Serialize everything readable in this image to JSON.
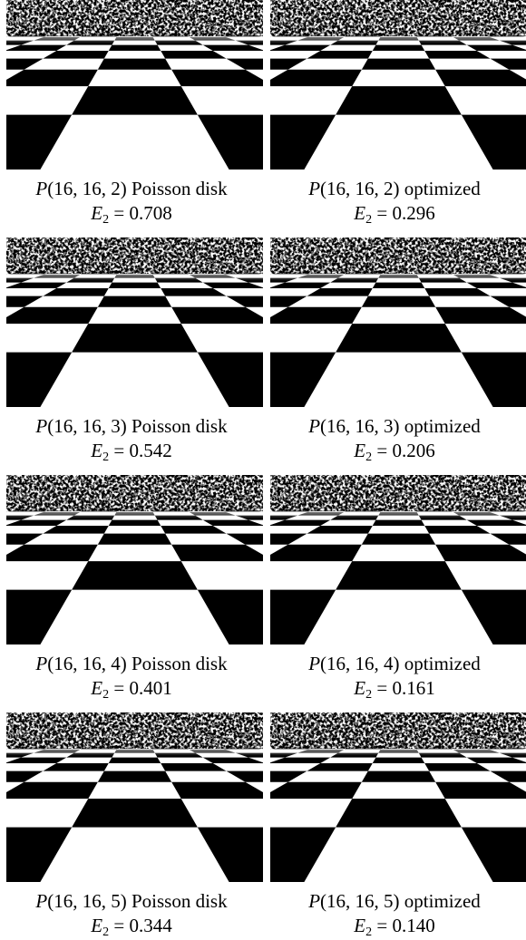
{
  "panels": [
    {
      "symbol": "P",
      "params": "(16, 16, 2)",
      "method": "Poisson disk",
      "error_symbol": "E",
      "error_subscript": "2",
      "relation": "=",
      "error": "0.708"
    },
    {
      "symbol": "P",
      "params": "(16, 16, 2)",
      "method": "optimized",
      "error_symbol": "E",
      "error_subscript": "2",
      "relation": "=",
      "error": "0.296"
    },
    {
      "symbol": "P",
      "params": "(16, 16, 3)",
      "method": "Poisson disk",
      "error_symbol": "E",
      "error_subscript": "2",
      "relation": "=",
      "error": "0.542"
    },
    {
      "symbol": "P",
      "params": "(16, 16, 3)",
      "method": "optimized",
      "error_symbol": "E",
      "error_subscript": "2",
      "relation": "=",
      "error": "0.206"
    },
    {
      "symbol": "P",
      "params": "(16, 16, 4)",
      "method": "Poisson disk",
      "error_symbol": "E",
      "error_subscript": "2",
      "relation": "=",
      "error": "0.401"
    },
    {
      "symbol": "P",
      "params": "(16, 16, 4)",
      "method": "optimized",
      "error_symbol": "E",
      "error_subscript": "2",
      "relation": "=",
      "error": "0.161"
    },
    {
      "symbol": "P",
      "params": "(16, 16, 5)",
      "method": "Poisson disk",
      "error_symbol": "E",
      "error_subscript": "2",
      "relation": "=",
      "error": "0.344"
    },
    {
      "symbol": "P",
      "params": "(16, 16, 5)",
      "method": "optimized",
      "error_symbol": "E",
      "error_subscript": "2",
      "relation": "=",
      "error": "0.140"
    }
  ]
}
